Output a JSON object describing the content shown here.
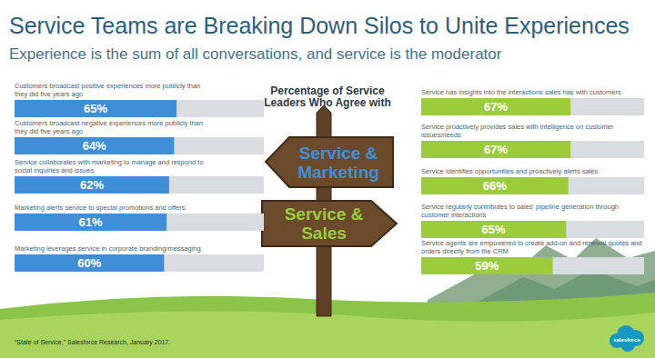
{
  "title": "Service Teams are Breaking Down Silos to Unite Experiences",
  "subtitle": "Experience is the sum of all conversations, and service is the moderator",
  "center_title": "Percentage of Service Leaders Who Agree with",
  "source": "“State of Service,” Salesforce Research, January 2017.",
  "logo": "salesforce",
  "chart_data": [
    {
      "type": "bar",
      "title": "Service & Marketing",
      "orientation": "horizontal",
      "categories": [
        "Customers broadcast positive experiences more publicly than they did five years ago",
        "Customers broadcast negative experiences more publicly than they did five years ago",
        "Service collaborates with marketing to manage and respond to social inquiries and issues",
        "Marketing alerts service to special promotions and offers",
        "Marketing leverages service in corporate branding/messaging"
      ],
      "values": [
        65,
        64,
        62,
        61,
        60
      ],
      "value_labels": [
        "65%",
        "64%",
        "62%",
        "61%",
        "60%"
      ],
      "data_labels": true,
      "color": "#3f8fd8",
      "xlim": [
        0,
        100
      ],
      "tick_labels": false
    },
    {
      "type": "bar",
      "title": "Service & Sales",
      "orientation": "horizontal",
      "categories": [
        "Service has insights into the interactions sales has with customers",
        "Service proactively provides sales with intelligence on customer issues/needs",
        "Service identifies opportunities and proactively alerts sales",
        "Service regularly contributes to sales' pipeline generation through customer interactions",
        "Service agents are empowered to create add-on and renewal quotes and orders directly from the CRM"
      ],
      "values": [
        67,
        67,
        66,
        65,
        59
      ],
      "value_labels": [
        "67%",
        "67%",
        "66%",
        "65%",
        "59%"
      ],
      "data_labels": true,
      "color": "#9ccb3c",
      "xlim": [
        0,
        100
      ],
      "tick_labels": false
    }
  ]
}
